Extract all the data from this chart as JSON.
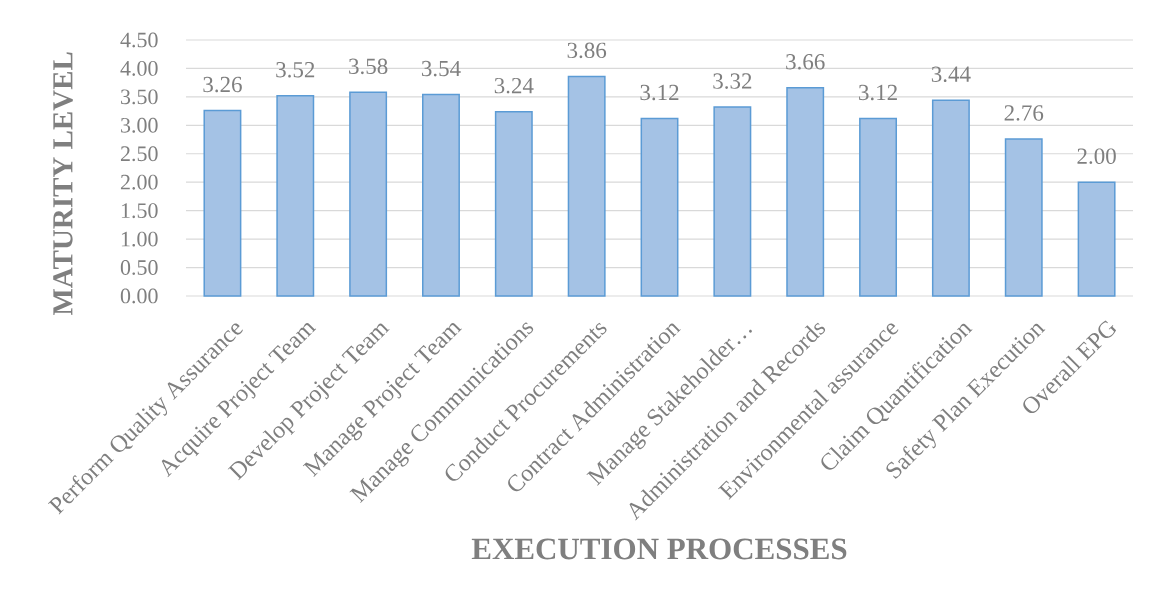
{
  "chart_data": {
    "type": "bar",
    "xlabel": "EXECUTION PROCESSES",
    "ylabel": "MATURITY LEVEL",
    "categories": [
      "Perform Quality Assurance",
      "Acquire Project Team",
      "Develop Project Team",
      "Manage Project Team",
      "Manage Communications",
      "Conduct Procurements",
      "Contract Administration",
      "Manage Stakeholder…",
      "Administration and Records",
      "Environmental assurance",
      "Claim Quantification",
      "Safety Plan Execution",
      "Overall EPG"
    ],
    "values": [
      3.26,
      3.52,
      3.58,
      3.54,
      3.24,
      3.86,
      3.12,
      3.32,
      3.66,
      3.12,
      3.44,
      2.76,
      2.0
    ],
    "value_labels": [
      "3.26",
      "3.52",
      "3.58",
      "3.54",
      "3.24",
      "3.86",
      "3.12",
      "3.32",
      "3.66",
      "3.12",
      "3.44",
      "2.76",
      "2.00"
    ],
    "color": "#a4c2e5",
    "ylim": [
      0,
      4.5
    ],
    "yticks": [
      {
        "value": 0,
        "label": "0.00"
      },
      {
        "value": 0.5,
        "label": "0.50"
      },
      {
        "value": 1,
        "label": "1.00"
      },
      {
        "value": 1.5,
        "label": "1.50"
      },
      {
        "value": 2,
        "label": "2.00"
      },
      {
        "value": 2.5,
        "label": "2.50"
      },
      {
        "value": 3,
        "label": "3.00"
      },
      {
        "value": 3.5,
        "label": "3.50"
      },
      {
        "value": 4,
        "label": "4.00"
      },
      {
        "value": 4.5,
        "label": "4.50"
      }
    ],
    "grid": "y"
  }
}
